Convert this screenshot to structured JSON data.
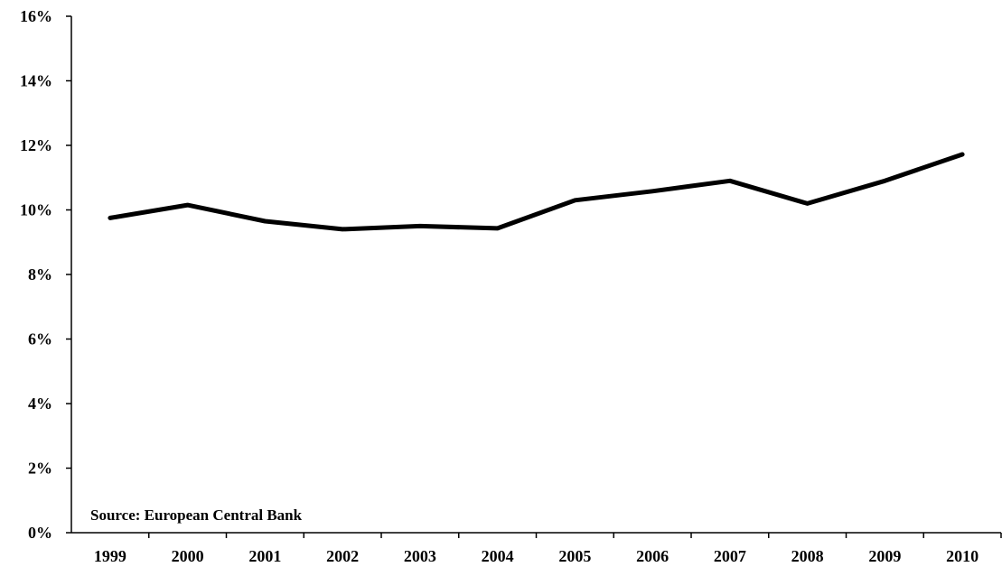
{
  "chart_data": {
    "type": "line",
    "title": "",
    "xlabel": "",
    "ylabel": "",
    "categories": [
      "1999",
      "2000",
      "2001",
      "2002",
      "2003",
      "2004",
      "2005",
      "2006",
      "2007",
      "2008",
      "2009",
      "2010"
    ],
    "series": [
      {
        "values": [
          9.75,
          10.15,
          9.65,
          9.4,
          9.5,
          9.43,
          10.3,
          10.58,
          10.9,
          10.2,
          10.9,
          11.72
        ],
        "color": "#000000"
      }
    ],
    "ylim": [
      0,
      16
    ],
    "y_ticks": [
      0,
      2,
      4,
      6,
      8,
      10,
      12,
      14,
      16
    ],
    "y_tick_labels": [
      "0%",
      "2%",
      "4%",
      "6%",
      "8%",
      "10%",
      "12%",
      "14%",
      "16%"
    ],
    "grid": false,
    "legend": "none",
    "annotation": "Source: European Central Bank"
  }
}
